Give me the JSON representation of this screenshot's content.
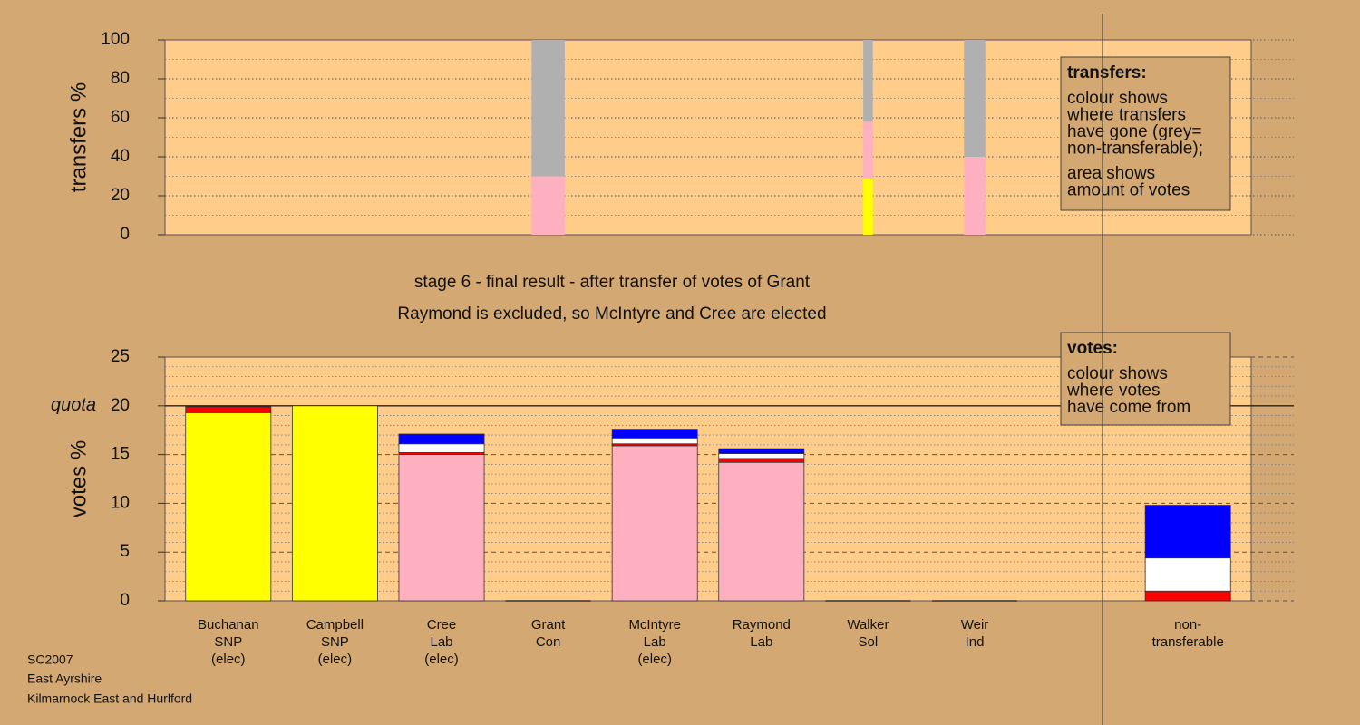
{
  "chart_data": [
    {
      "type": "bar",
      "stacked": true,
      "ylabel": "transfers %",
      "ylim": [
        0,
        100
      ],
      "yticks": [
        0,
        20,
        40,
        60,
        80,
        100
      ],
      "minor_yticks": [
        10,
        30,
        50,
        70,
        90
      ],
      "grid": true,
      "bar_widths": [
        null,
        null,
        null,
        0.31,
        null,
        null,
        0.09,
        0.2,
        null,
        null
      ],
      "series": [
        {
          "color": "#ffff00",
          "values": [
            null,
            null,
            null,
            0,
            null,
            null,
            29,
            0,
            null,
            null
          ]
        },
        {
          "color": "#ffb0c0",
          "values": [
            null,
            null,
            null,
            30,
            null,
            null,
            29,
            40,
            null,
            null
          ]
        },
        {
          "color": "#b0b0b0",
          "values": [
            null,
            null,
            null,
            70,
            null,
            null,
            42,
            60,
            null,
            null
          ]
        }
      ],
      "note": {
        "title": "transfers:",
        "lines": [
          "colour shows",
          "where transfers",
          "have gone (grey=",
          "non-transferable);",
          "area shows",
          "amount of votes"
        ]
      }
    },
    {
      "type": "bar",
      "stacked": true,
      "ylabel": "votes %",
      "ylim": [
        0,
        25
      ],
      "yticks": [
        0,
        5,
        10,
        15,
        20,
        25
      ],
      "minor_yticks": [
        1,
        2,
        3,
        4,
        6,
        7,
        8,
        9,
        11,
        12,
        13,
        14,
        16,
        17,
        18,
        19,
        21,
        22,
        23,
        24
      ],
      "grid": true,
      "quota": {
        "label": "quota",
        "value": 20
      },
      "categories": [
        [
          "Buchanan",
          "SNP",
          "(elec)"
        ],
        [
          "Campbell",
          "SNP",
          "(elec)"
        ],
        [
          "Cree",
          "Lab",
          "(elec)"
        ],
        [
          "Grant",
          "Con"
        ],
        [
          "McIntyre",
          "Lab",
          "(elec)"
        ],
        [
          "Raymond",
          "Lab"
        ],
        [
          "Walker",
          "Sol"
        ],
        [
          "Weir",
          "Ind"
        ],
        null,
        [
          "non-",
          "transferable"
        ]
      ],
      "series": [
        {
          "color": "#ffff00",
          "values": [
            19.3,
            20,
            null,
            null,
            null,
            null,
            null,
            null,
            null,
            null
          ]
        },
        {
          "color": "#ffb0c0",
          "values": [
            null,
            null,
            15.0,
            0,
            15.9,
            14.2,
            0,
            0,
            null,
            null
          ]
        },
        {
          "color": "#ff0000",
          "values": [
            0.6,
            null,
            0.2,
            null,
            0.2,
            0.4,
            null,
            null,
            null,
            1.0
          ]
        },
        {
          "color": "#ffffff",
          "values": [
            null,
            null,
            0.9,
            null,
            0.6,
            0.5,
            null,
            null,
            null,
            3.4
          ]
        },
        {
          "color": "#0000ff",
          "values": [
            null,
            null,
            1.0,
            null,
            0.9,
            0.5,
            null,
            null,
            null,
            5.4
          ]
        }
      ],
      "note": {
        "title": "votes:",
        "lines": [
          "colour shows",
          "where votes",
          "have come from"
        ]
      }
    }
  ],
  "caption": [
    "stage 6 - final result - after transfer of votes of Grant",
    "Raymond is excluded, so McIntyre and Cree are elected"
  ],
  "footer": [
    "SC2007",
    "East Ayrshire",
    "Kilmarnock East and Hurlford"
  ]
}
